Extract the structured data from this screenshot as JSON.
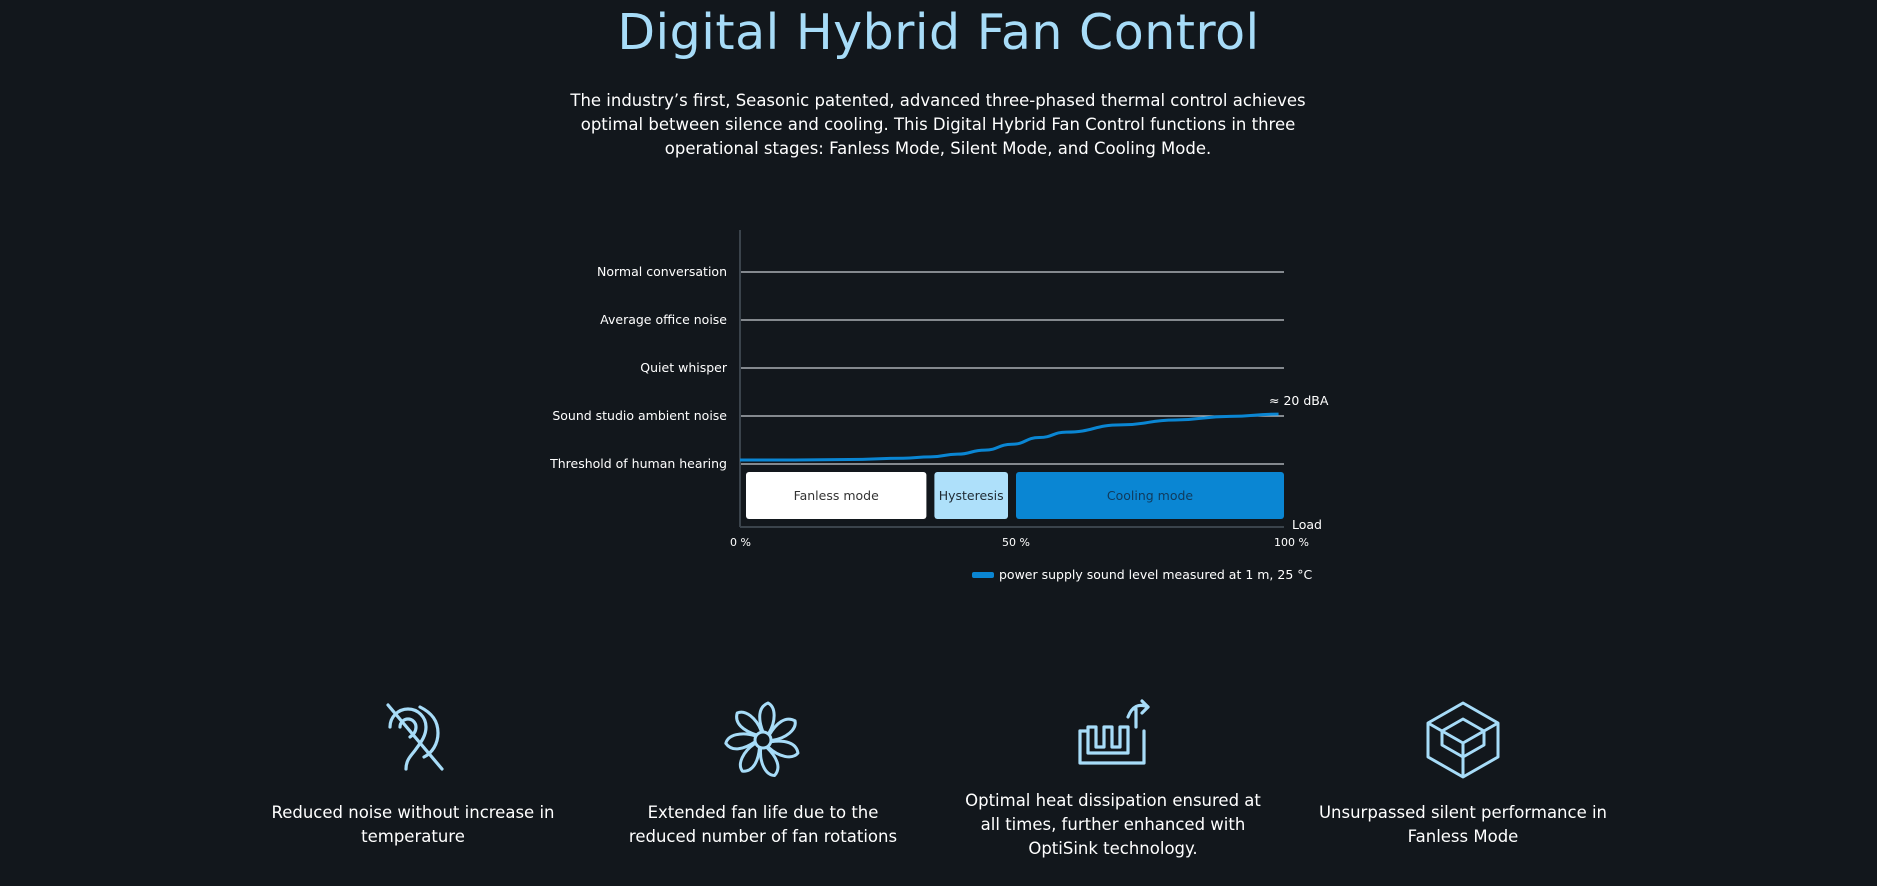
{
  "header": {
    "title": "Digital Hybrid Fan Control",
    "intro": "The industry’s first, Seasonic patented, advanced three-phased thermal control achieves optimal between silence and cooling. This Digital Hybrid Fan Control functions in three operational stages: Fanless Mode, Silent Mode, and Cooling Mode."
  },
  "chart_data": {
    "type": "line",
    "title": "",
    "xlabel": "Load",
    "ylabel": "",
    "x_ticks": [
      "0 %",
      "50 %",
      "100 %"
    ],
    "xlim": [
      0,
      100
    ],
    "y_levels": [
      "Threshold of human hearing",
      "Sound studio ambient noise",
      "Quiet whisper",
      "Average office noise",
      "Normal conversation"
    ],
    "annotation": "≈ 20 dBA",
    "modes": [
      {
        "label": "Fanless mode",
        "start": 0,
        "end": 35,
        "fill": "#ffffff",
        "text": "#333333"
      },
      {
        "label": "Hysteresis",
        "start": 35,
        "end": 50,
        "fill": "#aee0fa",
        "text": "#1f2a33"
      },
      {
        "label": "Cooling mode",
        "start": 50,
        "end": 100,
        "fill": "#0a86d3",
        "text": "#103a5c"
      }
    ],
    "series": [
      {
        "name": "power supply sound level measured at 1 m, 25 °C",
        "color": "#0a86d3",
        "x": [
          0,
          10,
          20,
          30,
          35,
          40,
          45,
          50,
          55,
          60,
          70,
          80,
          90,
          99
        ],
        "y": [
          0,
          0,
          0.01,
          0.04,
          0.07,
          0.13,
          0.22,
          0.35,
          0.5,
          0.62,
          0.78,
          0.89,
          0.97,
          1.02
        ]
      }
    ]
  },
  "features": [
    {
      "icon": "reduced-noise-icon",
      "text": "Reduced noise without increase in temperature"
    },
    {
      "icon": "fan-icon",
      "text": "Extended fan life due to the reduced number of fan rotations"
    },
    {
      "icon": "heat-dissipation-icon",
      "text": "Optimal heat dissipation ensured at all times, further enhanced with OptiSink technology."
    },
    {
      "icon": "cube-icon",
      "text": "Unsurpassed silent performance in Fanless Mode"
    }
  ],
  "colors": {
    "background": "#12171c",
    "accent": "#a7dcf8",
    "series": "#0a86d3"
  }
}
